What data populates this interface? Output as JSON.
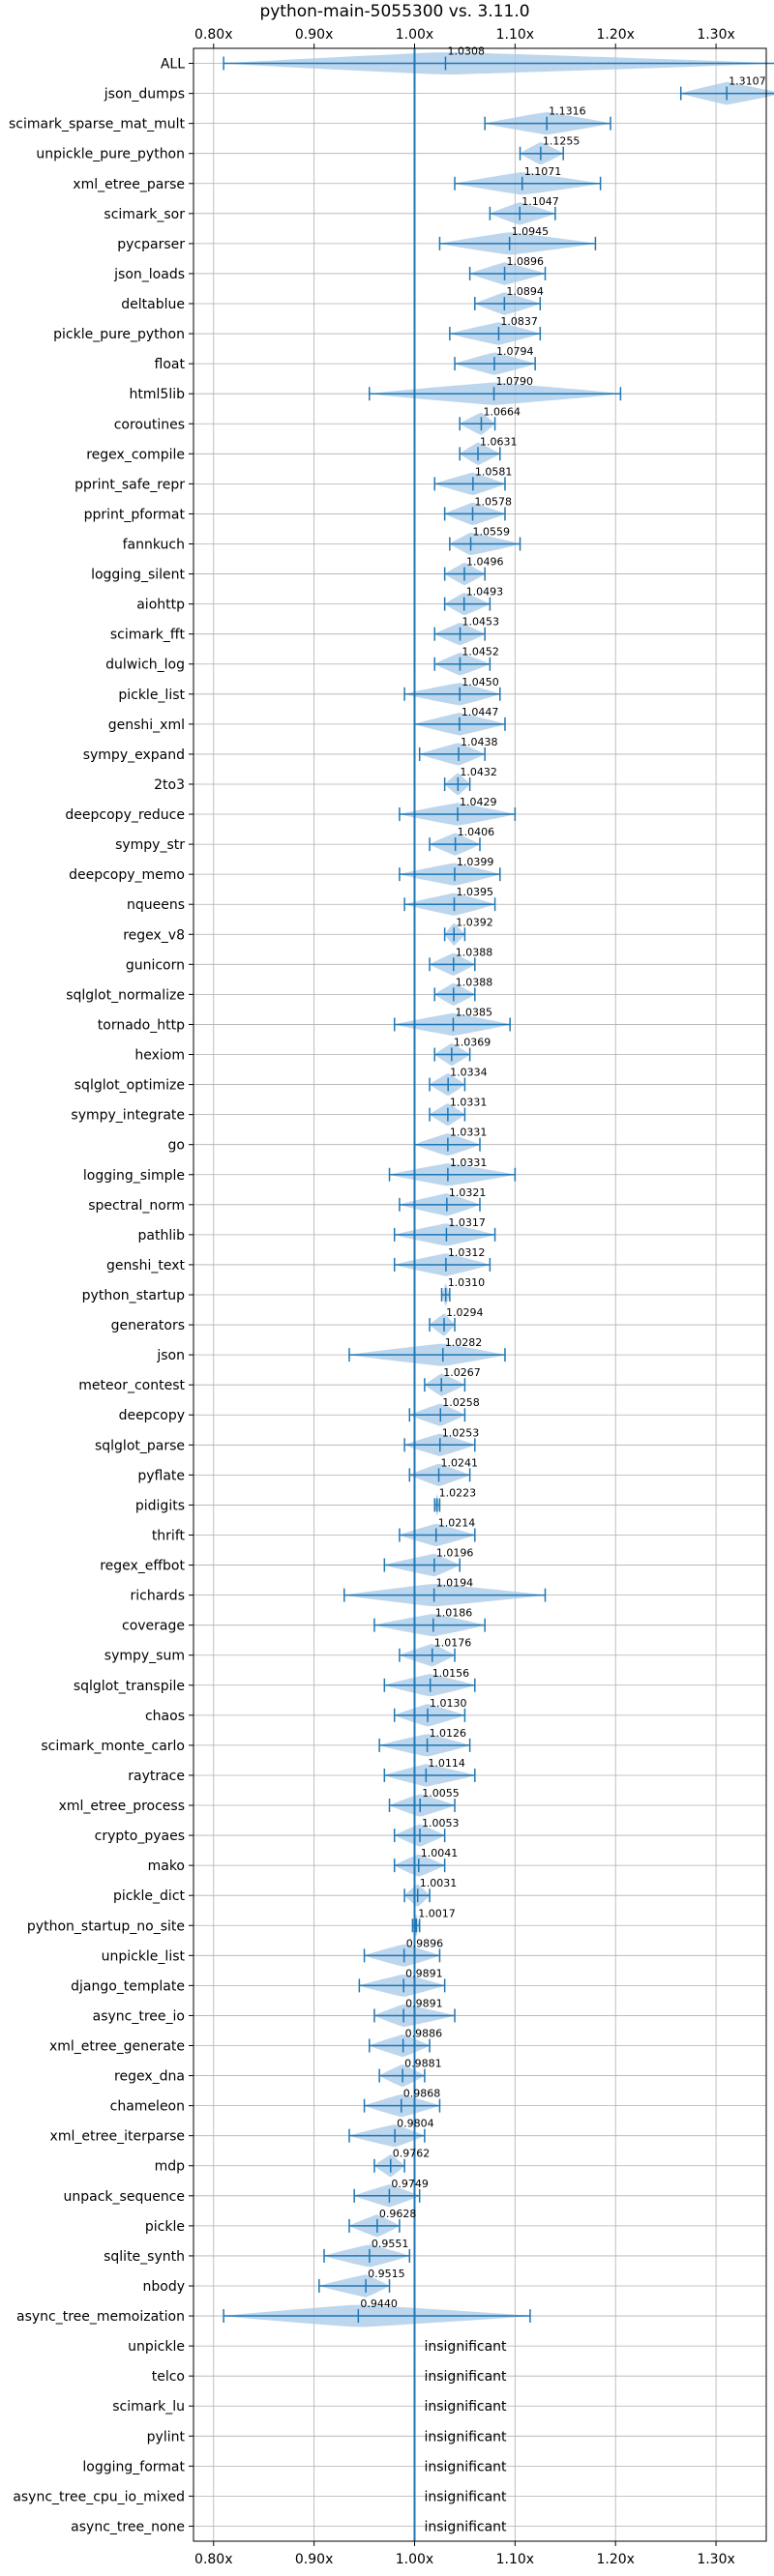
{
  "chart_data": {
    "type": "violin",
    "title": "python-main-5055300 vs. 3.11.0",
    "xlabel": "",
    "ylabel": "",
    "xlim": [
      0.78,
      1.35
    ],
    "xticks": [
      0.8,
      0.9,
      1.0,
      1.1,
      1.2,
      1.3
    ],
    "xtick_labels": [
      "0.80x",
      "0.90x",
      "1.00x",
      "1.10x",
      "1.20x",
      "1.30x"
    ],
    "reference_line": 1.0,
    "grid": true,
    "color": "#1f77b4",
    "fill_color": "#a6c8e8",
    "benchmarks": [
      {
        "name": "ALL",
        "value": 1.0308,
        "label": "1.0308",
        "min": 0.81,
        "max": 1.36
      },
      {
        "name": "json_dumps",
        "value": 1.3107,
        "label": "1.3107",
        "min": 1.265,
        "max": 1.365
      },
      {
        "name": "scimark_sparse_mat_mult",
        "value": 1.1316,
        "label": "1.1316",
        "min": 1.07,
        "max": 1.195
      },
      {
        "name": "unpickle_pure_python",
        "value": 1.1255,
        "label": "1.1255",
        "min": 1.105,
        "max": 1.148
      },
      {
        "name": "xml_etree_parse",
        "value": 1.1071,
        "label": "1.1071",
        "min": 1.04,
        "max": 1.185
      },
      {
        "name": "scimark_sor",
        "value": 1.1047,
        "label": "1.1047",
        "min": 1.075,
        "max": 1.14
      },
      {
        "name": "pycparser",
        "value": 1.0945,
        "label": "1.0945",
        "min": 1.025,
        "max": 1.18
      },
      {
        "name": "json_loads",
        "value": 1.0896,
        "label": "1.0896",
        "min": 1.055,
        "max": 1.13
      },
      {
        "name": "deltablue",
        "value": 1.0894,
        "label": "1.0894",
        "min": 1.06,
        "max": 1.125
      },
      {
        "name": "pickle_pure_python",
        "value": 1.0837,
        "label": "1.0837",
        "min": 1.035,
        "max": 1.125
      },
      {
        "name": "float",
        "value": 1.0794,
        "label": "1.0794",
        "min": 1.04,
        "max": 1.12
      },
      {
        "name": "html5lib",
        "value": 1.079,
        "label": "1.0790",
        "min": 0.955,
        "max": 1.205
      },
      {
        "name": "coroutines",
        "value": 1.0664,
        "label": "1.0664",
        "min": 1.045,
        "max": 1.08
      },
      {
        "name": "regex_compile",
        "value": 1.0631,
        "label": "1.0631",
        "min": 1.045,
        "max": 1.085
      },
      {
        "name": "pprint_safe_repr",
        "value": 1.0581,
        "label": "1.0581",
        "min": 1.02,
        "max": 1.09
      },
      {
        "name": "pprint_pformat",
        "value": 1.0578,
        "label": "1.0578",
        "min": 1.03,
        "max": 1.09
      },
      {
        "name": "fannkuch",
        "value": 1.0559,
        "label": "1.0559",
        "min": 1.035,
        "max": 1.105
      },
      {
        "name": "logging_silent",
        "value": 1.0496,
        "label": "1.0496",
        "min": 1.03,
        "max": 1.07
      },
      {
        "name": "aiohttp",
        "value": 1.0493,
        "label": "1.0493",
        "min": 1.03,
        "max": 1.075
      },
      {
        "name": "scimark_fft",
        "value": 1.0453,
        "label": "1.0453",
        "min": 1.02,
        "max": 1.07
      },
      {
        "name": "dulwich_log",
        "value": 1.0452,
        "label": "1.0452",
        "min": 1.02,
        "max": 1.075
      },
      {
        "name": "pickle_list",
        "value": 1.045,
        "label": "1.0450",
        "min": 0.99,
        "max": 1.085
      },
      {
        "name": "genshi_xml",
        "value": 1.0447,
        "label": "1.0447",
        "min": 1.0,
        "max": 1.09
      },
      {
        "name": "sympy_expand",
        "value": 1.0438,
        "label": "1.0438",
        "min": 1.005,
        "max": 1.07
      },
      {
        "name": "2to3",
        "value": 1.0432,
        "label": "1.0432",
        "min": 1.03,
        "max": 1.055
      },
      {
        "name": "deepcopy_reduce",
        "value": 1.0429,
        "label": "1.0429",
        "min": 0.985,
        "max": 1.1
      },
      {
        "name": "sympy_str",
        "value": 1.0406,
        "label": "1.0406",
        "min": 1.015,
        "max": 1.065
      },
      {
        "name": "deepcopy_memo",
        "value": 1.0399,
        "label": "1.0399",
        "min": 0.985,
        "max": 1.085
      },
      {
        "name": "nqueens",
        "value": 1.0395,
        "label": "1.0395",
        "min": 0.99,
        "max": 1.08
      },
      {
        "name": "regex_v8",
        "value": 1.0392,
        "label": "1.0392",
        "min": 1.03,
        "max": 1.05
      },
      {
        "name": "gunicorn",
        "value": 1.0388,
        "label": "1.0388",
        "min": 1.015,
        "max": 1.06
      },
      {
        "name": "sqlglot_normalize",
        "value": 1.0388,
        "label": "1.0388",
        "min": 1.02,
        "max": 1.06
      },
      {
        "name": "tornado_http",
        "value": 1.0385,
        "label": "1.0385",
        "min": 0.98,
        "max": 1.095
      },
      {
        "name": "hexiom",
        "value": 1.0369,
        "label": "1.0369",
        "min": 1.02,
        "max": 1.055
      },
      {
        "name": "sqlglot_optimize",
        "value": 1.0334,
        "label": "1.0334",
        "min": 1.015,
        "max": 1.05
      },
      {
        "name": "sympy_integrate",
        "value": 1.0331,
        "label": "1.0331",
        "min": 1.015,
        "max": 1.05
      },
      {
        "name": "go",
        "value": 1.0331,
        "label": "1.0331",
        "min": 1.0,
        "max": 1.065
      },
      {
        "name": "logging_simple",
        "value": 1.0331,
        "label": "1.0331",
        "min": 0.975,
        "max": 1.1
      },
      {
        "name": "spectral_norm",
        "value": 1.0321,
        "label": "1.0321",
        "min": 0.985,
        "max": 1.065
      },
      {
        "name": "pathlib",
        "value": 1.0317,
        "label": "1.0317",
        "min": 0.98,
        "max": 1.08
      },
      {
        "name": "genshi_text",
        "value": 1.0312,
        "label": "1.0312",
        "min": 0.98,
        "max": 1.075
      },
      {
        "name": "python_startup",
        "value": 1.031,
        "label": "1.0310",
        "min": 1.027,
        "max": 1.035
      },
      {
        "name": "generators",
        "value": 1.0294,
        "label": "1.0294",
        "min": 1.015,
        "max": 1.04
      },
      {
        "name": "json",
        "value": 1.0282,
        "label": "1.0282",
        "min": 0.935,
        "max": 1.09
      },
      {
        "name": "meteor_contest",
        "value": 1.0267,
        "label": "1.0267",
        "min": 1.01,
        "max": 1.05
      },
      {
        "name": "deepcopy",
        "value": 1.0258,
        "label": "1.0258",
        "min": 0.995,
        "max": 1.05
      },
      {
        "name": "sqlglot_parse",
        "value": 1.0253,
        "label": "1.0253",
        "min": 0.99,
        "max": 1.06
      },
      {
        "name": "pyflate",
        "value": 1.0241,
        "label": "1.0241",
        "min": 0.995,
        "max": 1.055
      },
      {
        "name": "pidigits",
        "value": 1.0223,
        "label": "1.0223",
        "min": 1.02,
        "max": 1.025
      },
      {
        "name": "thrift",
        "value": 1.0214,
        "label": "1.0214",
        "min": 0.985,
        "max": 1.06
      },
      {
        "name": "regex_effbot",
        "value": 1.0196,
        "label": "1.0196",
        "min": 0.97,
        "max": 1.045
      },
      {
        "name": "richards",
        "value": 1.0194,
        "label": "1.0194",
        "min": 0.93,
        "max": 1.13
      },
      {
        "name": "coverage",
        "value": 1.0186,
        "label": "1.0186",
        "min": 0.96,
        "max": 1.07
      },
      {
        "name": "sympy_sum",
        "value": 1.0176,
        "label": "1.0176",
        "min": 0.985,
        "max": 1.04
      },
      {
        "name": "sqlglot_transpile",
        "value": 1.0156,
        "label": "1.0156",
        "min": 0.97,
        "max": 1.06
      },
      {
        "name": "chaos",
        "value": 1.013,
        "label": "1.0130",
        "min": 0.98,
        "max": 1.05
      },
      {
        "name": "scimark_monte_carlo",
        "value": 1.0126,
        "label": "1.0126",
        "min": 0.965,
        "max": 1.055
      },
      {
        "name": "raytrace",
        "value": 1.0114,
        "label": "1.0114",
        "min": 0.97,
        "max": 1.06
      },
      {
        "name": "xml_etree_process",
        "value": 1.0055,
        "label": "1.0055",
        "min": 0.975,
        "max": 1.04
      },
      {
        "name": "crypto_pyaes",
        "value": 1.0053,
        "label": "1.0053",
        "min": 0.98,
        "max": 1.03
      },
      {
        "name": "mako",
        "value": 1.0041,
        "label": "1.0041",
        "min": 0.98,
        "max": 1.03
      },
      {
        "name": "pickle_dict",
        "value": 1.0031,
        "label": "1.0031",
        "min": 0.99,
        "max": 1.015
      },
      {
        "name": "python_startup_no_site",
        "value": 1.0017,
        "label": "1.0017",
        "min": 0.998,
        "max": 1.005
      },
      {
        "name": "unpickle_list",
        "value": 0.9896,
        "label": "0.9896",
        "min": 0.95,
        "max": 1.025
      },
      {
        "name": "django_template",
        "value": 0.9891,
        "label": "0.9891",
        "min": 0.945,
        "max": 1.03
      },
      {
        "name": "async_tree_io",
        "value": 0.9891,
        "label": "0.9891",
        "min": 0.96,
        "max": 1.04
      },
      {
        "name": "xml_etree_generate",
        "value": 0.9886,
        "label": "0.9886",
        "min": 0.955,
        "max": 1.015
      },
      {
        "name": "regex_dna",
        "value": 0.9881,
        "label": "0.9881",
        "min": 0.965,
        "max": 1.01
      },
      {
        "name": "chameleon",
        "value": 0.9868,
        "label": "0.9868",
        "min": 0.95,
        "max": 1.025
      },
      {
        "name": "xml_etree_iterparse",
        "value": 0.9804,
        "label": "0.9804",
        "min": 0.935,
        "max": 1.01
      },
      {
        "name": "mdp",
        "value": 0.9762,
        "label": "0.9762",
        "min": 0.96,
        "max": 0.99
      },
      {
        "name": "unpack_sequence",
        "value": 0.9749,
        "label": "0.9749",
        "min": 0.94,
        "max": 1.005
      },
      {
        "name": "pickle",
        "value": 0.9628,
        "label": "0.9628",
        "min": 0.935,
        "max": 0.985
      },
      {
        "name": "sqlite_synth",
        "value": 0.9551,
        "label": "0.9551",
        "min": 0.91,
        "max": 0.995
      },
      {
        "name": "nbody",
        "value": 0.9515,
        "label": "0.9515",
        "min": 0.905,
        "max": 0.975
      },
      {
        "name": "async_tree_memoization",
        "value": 0.944,
        "label": "0.9440",
        "min": 0.81,
        "max": 1.115
      },
      {
        "name": "unpickle",
        "value": null,
        "label": "insignificant"
      },
      {
        "name": "telco",
        "value": null,
        "label": "insignificant"
      },
      {
        "name": "scimark_lu",
        "value": null,
        "label": "insignificant"
      },
      {
        "name": "pylint",
        "value": null,
        "label": "insignificant"
      },
      {
        "name": "logging_format",
        "value": null,
        "label": "insignificant"
      },
      {
        "name": "async_tree_cpu_io_mixed",
        "value": null,
        "label": "insignificant"
      },
      {
        "name": "async_tree_none",
        "value": null,
        "label": "insignificant"
      }
    ]
  }
}
